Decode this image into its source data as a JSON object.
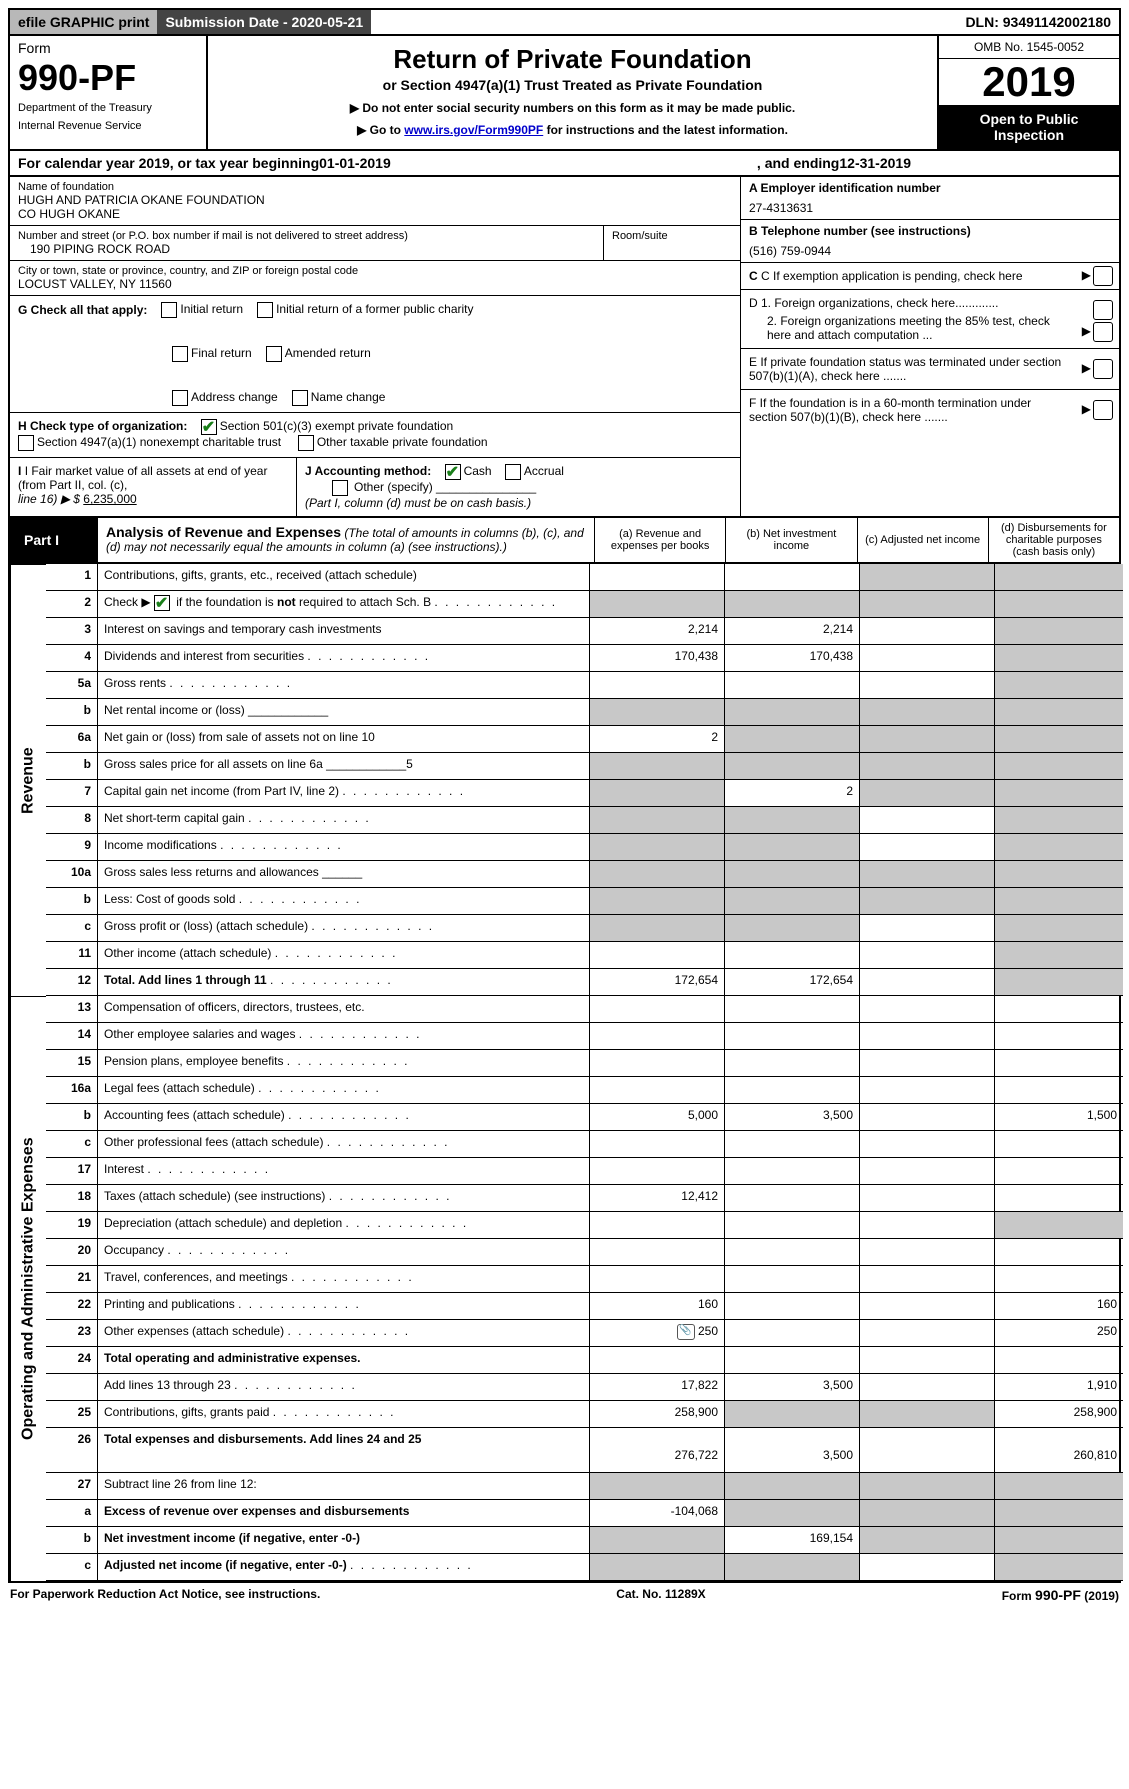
{
  "topbar": {
    "efile": "efile GRAPHIC print",
    "submission": "Submission Date - 2020-05-21",
    "dln": "DLN: 93491142002180"
  },
  "header": {
    "form_word": "Form",
    "form_num": "990-PF",
    "dept1": "Department of the Treasury",
    "dept2": "Internal Revenue Service",
    "title": "Return of Private Foundation",
    "subtitle": "or Section 4947(a)(1) Trust Treated as Private Foundation",
    "instr1": "▶ Do not enter social security numbers on this form as it may be made public.",
    "instr2_pre": "▶ Go to ",
    "instr2_link": "www.irs.gov/Form990PF",
    "instr2_post": " for instructions and the latest information.",
    "omb": "OMB No. 1545-0052",
    "year": "2019",
    "open": "Open to Public Inspection"
  },
  "calyear": {
    "pre": "For calendar year 2019, or tax year beginning ",
    "begin": "01-01-2019",
    "mid": ", and ending ",
    "end": "12-31-2019"
  },
  "entity": {
    "name_label": "Name of foundation",
    "name1": "HUGH AND PATRICIA OKANE FOUNDATION",
    "name2": "CO HUGH OKANE",
    "street_label": "Number and street (or P.O. box number if mail is not delivered to street address)",
    "street": "190 PIPING ROCK ROAD",
    "room_label": "Room/suite",
    "city_label": "City or town, state or province, country, and ZIP or foreign postal code",
    "city": "LOCUST VALLEY, NY  11560",
    "A_label": "A Employer identification number",
    "A_val": "27-4313631",
    "B_label": "B Telephone number (see instructions)",
    "B_val": "(516) 759-0944",
    "C_label": "C If exemption application is pending, check here",
    "D1": "D 1. Foreign organizations, check here.............",
    "D2": "2. Foreign organizations meeting the 85% test, check here and attach computation ...",
    "E": "E  If private foundation status was terminated under section 507(b)(1)(A), check here .......",
    "F": "F  If the foundation is in a 60-month termination under section 507(b)(1)(B), check here .......",
    "G_label": "G Check all that apply:",
    "g_opts": [
      "Initial return",
      "Initial return of a former public charity",
      "Final return",
      "Amended return",
      "Address change",
      "Name change"
    ],
    "H_label": "H Check type of organization:",
    "H_opt1": "Section 501(c)(3) exempt private foundation",
    "H_opt2": "Section 4947(a)(1) nonexempt charitable trust",
    "H_opt3": "Other taxable private foundation",
    "I_label": "I Fair market value of all assets at end of year (from Part II, col. (c),",
    "I_line16": "line 16) ▶ $",
    "I_val": "6,235,000",
    "J_label": "J Accounting method:",
    "J_cash": "Cash",
    "J_accrual": "Accrual",
    "J_other": "Other (specify)",
    "J_note": "(Part I, column (d) must be on cash basis.)"
  },
  "part1": {
    "label": "Part I",
    "title": "Analysis of Revenue and Expenses",
    "note": "(The total of amounts in columns (b), (c), and (d) may not necessarily equal the amounts in column (a) (see instructions).)",
    "col_a": "(a)   Revenue and expenses per books",
    "col_b": "(b)  Net investment income",
    "col_c": "(c)  Adjusted net income",
    "col_d": "(d)  Disbursements for charitable purposes (cash basis only)",
    "side_rev": "Revenue",
    "side_exp": "Operating and Administrative Expenses"
  },
  "rows": [
    {
      "n": "1",
      "desc": "Contributions, gifts, grants, etc., received (attach schedule)",
      "a": "",
      "b": "",
      "c": "g",
      "d": "g"
    },
    {
      "n": "2",
      "desc": "Check ▶ ☑ if the foundation is not required to attach Sch. B",
      "dots": true,
      "a": "g",
      "b": "g",
      "c": "g",
      "d": "g",
      "nobold": true,
      "markup": true
    },
    {
      "n": "3",
      "desc": "Interest on savings and temporary cash investments",
      "a": "2,214",
      "b": "2,214",
      "c": "",
      "d": "g"
    },
    {
      "n": "4",
      "desc": "Dividends and interest from securities",
      "dots": true,
      "a": "170,438",
      "b": "170,438",
      "c": "",
      "d": "g"
    },
    {
      "n": "5a",
      "desc": "Gross rents",
      "dots": true,
      "a": "",
      "b": "",
      "c": "",
      "d": "g"
    },
    {
      "n": "b",
      "desc": "Net rental income or (loss)   ____________",
      "a": "g",
      "b": "g",
      "c": "g",
      "d": "g"
    },
    {
      "n": "6a",
      "desc": "Net gain or (loss) from sale of assets not on line 10",
      "a": "2",
      "b": "g",
      "c": "g",
      "d": "g"
    },
    {
      "n": "b",
      "desc": "Gross sales price for all assets on line 6a ____________5",
      "a": "g",
      "b": "g",
      "c": "g",
      "d": "g"
    },
    {
      "n": "7",
      "desc": "Capital gain net income (from Part IV, line 2)",
      "dots": true,
      "a": "g",
      "b": "2",
      "c": "g",
      "d": "g"
    },
    {
      "n": "8",
      "desc": "Net short-term capital gain",
      "dots": true,
      "a": "g",
      "b": "g",
      "c": "",
      "d": "g"
    },
    {
      "n": "9",
      "desc": "Income modifications",
      "dots": true,
      "a": "g",
      "b": "g",
      "c": "",
      "d": "g"
    },
    {
      "n": "10a",
      "desc": "Gross sales less returns and allowances  ______",
      "a": "g",
      "b": "g",
      "c": "g",
      "d": "g"
    },
    {
      "n": "b",
      "desc": "Less: Cost of goods sold",
      "dots": true,
      "extra": "______",
      "a": "g",
      "b": "g",
      "c": "g",
      "d": "g"
    },
    {
      "n": "c",
      "desc": "Gross profit or (loss) (attach schedule)",
      "dots": true,
      "a": "g",
      "b": "g",
      "c": "",
      "d": "g"
    },
    {
      "n": "11",
      "desc": "Other income (attach schedule)",
      "dots": true,
      "a": "",
      "b": "",
      "c": "",
      "d": "g"
    },
    {
      "n": "12",
      "desc": "Total. Add lines 1 through 11",
      "dots": true,
      "bold": true,
      "a": "172,654",
      "b": "172,654",
      "c": "",
      "d": "g"
    },
    {
      "n": "13",
      "desc": "Compensation of officers, directors, trustees, etc.",
      "a": "",
      "b": "",
      "c": "",
      "d": ""
    },
    {
      "n": "14",
      "desc": "Other employee salaries and wages",
      "dots": true,
      "a": "",
      "b": "",
      "c": "",
      "d": ""
    },
    {
      "n": "15",
      "desc": "Pension plans, employee benefits",
      "dots": true,
      "a": "",
      "b": "",
      "c": "",
      "d": ""
    },
    {
      "n": "16a",
      "desc": "Legal fees (attach schedule)",
      "dots": true,
      "a": "",
      "b": "",
      "c": "",
      "d": ""
    },
    {
      "n": "b",
      "desc": "Accounting fees (attach schedule)",
      "dots": true,
      "a": "5,000",
      "b": "3,500",
      "c": "",
      "d": "1,500"
    },
    {
      "n": "c",
      "desc": "Other professional fees (attach schedule)",
      "dots": true,
      "a": "",
      "b": "",
      "c": "",
      "d": ""
    },
    {
      "n": "17",
      "desc": "Interest",
      "dots": true,
      "a": "",
      "b": "",
      "c": "",
      "d": ""
    },
    {
      "n": "18",
      "desc": "Taxes (attach schedule) (see instructions)",
      "dots": true,
      "a": "12,412",
      "b": "",
      "c": "",
      "d": ""
    },
    {
      "n": "19",
      "desc": "Depreciation (attach schedule) and depletion",
      "dots": true,
      "a": "",
      "b": "",
      "c": "",
      "d": "g"
    },
    {
      "n": "20",
      "desc": "Occupancy",
      "dots": true,
      "a": "",
      "b": "",
      "c": "",
      "d": ""
    },
    {
      "n": "21",
      "desc": "Travel, conferences, and meetings",
      "dots": true,
      "a": "",
      "b": "",
      "c": "",
      "d": ""
    },
    {
      "n": "22",
      "desc": "Printing and publications",
      "dots": true,
      "a": "160",
      "b": "",
      "c": "",
      "d": "160"
    },
    {
      "n": "23",
      "desc": "Other expenses (attach schedule)",
      "dots": true,
      "icon": true,
      "a": "250",
      "b": "",
      "c": "",
      "d": "250"
    },
    {
      "n": "24",
      "desc": "Total operating and administrative expenses.",
      "bold": true,
      "a": "",
      "b": "",
      "c": "",
      "d": "",
      "noborder": true
    },
    {
      "n": "",
      "desc": "Add lines 13 through 23",
      "dots": true,
      "a": "17,822",
      "b": "3,500",
      "c": "",
      "d": "1,910"
    },
    {
      "n": "25",
      "desc": "Contributions, gifts, grants paid",
      "dots": true,
      "a": "258,900",
      "b": "g",
      "c": "g",
      "d": "258,900"
    },
    {
      "n": "26",
      "desc": "Total expenses and disbursements. Add lines 24 and 25",
      "bold": true,
      "a": "276,722",
      "b": "3,500",
      "c": "",
      "d": "260,810",
      "tall": true
    },
    {
      "n": "27",
      "desc": "Subtract line 26 from line 12:",
      "a": "g",
      "b": "g",
      "c": "g",
      "d": "g"
    },
    {
      "n": "a",
      "desc": "Excess of revenue over expenses and disbursements",
      "bold": true,
      "a": "-104,068",
      "b": "g",
      "c": "g",
      "d": "g"
    },
    {
      "n": "b",
      "desc": "Net investment income (if negative, enter -0-)",
      "bold": true,
      "a": "g",
      "b": "169,154",
      "c": "g",
      "d": "g"
    },
    {
      "n": "c",
      "desc": "Adjusted net income (if negative, enter -0-)",
      "bold": true,
      "dots": true,
      "a": "g",
      "b": "g",
      "c": "",
      "d": "g"
    }
  ],
  "footer": {
    "left": "For Paperwork Reduction Act Notice, see instructions.",
    "mid": "Cat. No. 11289X",
    "right": "Form 990-PF (2019)"
  },
  "colors": {
    "grey_cell": "#c8c8c8",
    "check_green": "#1a7f1a"
  }
}
